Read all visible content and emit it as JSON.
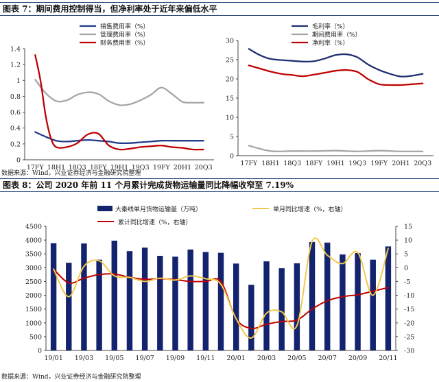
{
  "figure7": {
    "title": "图表 7：期间费用控制得当，但净利率处于近年来偏低水平",
    "source": "数据来源：Wind，兴业证券经济与金融研究院整理"
  },
  "figure8": {
    "title": "图表 8：公司 2020 年前 11 个月累计完成货物运输量同比降幅收窄至 7.19%",
    "source": "数据来源：Wind，兴业证券经济与金融研究院整理"
  },
  "chart_data": [
    {
      "id": "left",
      "type": "line",
      "x_tick_labels": [
        "17FY",
        "18H1",
        "18Q3",
        "18FY",
        "19H1",
        "19Q3",
        "19FY",
        "20H1",
        "20Q3"
      ],
      "ylim": [
        0,
        1.4
      ],
      "y_ticks": [
        0,
        0.2,
        0.4,
        0.6,
        0.8,
        1,
        1.2,
        1.4
      ],
      "legend_position": "top-center",
      "series": [
        {
          "name": "销售费用率（%）",
          "color": "#1f3a8a",
          "x": [
            0,
            0.5,
            1,
            1.5,
            2,
            2.5,
            3,
            3.5,
            4,
            4.5,
            5,
            5.5,
            6,
            6.5,
            7,
            7.5,
            8
          ],
          "values": [
            0.35,
            0.29,
            0.24,
            0.23,
            0.24,
            0.25,
            0.24,
            0.23,
            0.21,
            0.21,
            0.22,
            0.23,
            0.24,
            0.24,
            0.24,
            0.24,
            0.24
          ]
        },
        {
          "name": "管理费用率（%）",
          "color": "#a6a6a6",
          "x": [
            0,
            0.5,
            1,
            1.5,
            2,
            2.5,
            3,
            3.5,
            4,
            4.5,
            5,
            5.5,
            6,
            6.5,
            7,
            7.5,
            8
          ],
          "values": [
            1.01,
            0.84,
            0.74,
            0.75,
            0.82,
            0.85,
            0.83,
            0.74,
            0.69,
            0.7,
            0.75,
            0.82,
            0.91,
            0.83,
            0.73,
            0.72,
            0.72
          ]
        },
        {
          "name": "财务费用率（%）",
          "color": "#c00000",
          "x": [
            0,
            0.25,
            0.5,
            0.75,
            1,
            1.5,
            2,
            2.5,
            3,
            3.5,
            4,
            4.5,
            5,
            5.5,
            6,
            6.5,
            7,
            7.5,
            8
          ],
          "values": [
            1.32,
            1.0,
            0.55,
            0.27,
            0.16,
            0.16,
            0.21,
            0.32,
            0.33,
            0.18,
            0.13,
            0.14,
            0.16,
            0.17,
            0.18,
            0.16,
            0.15,
            0.13,
            0.13
          ]
        }
      ]
    },
    {
      "id": "right",
      "type": "line",
      "x_tick_labels": [
        "17FY",
        "18H1",
        "18Q3",
        "18FY",
        "19H1",
        "19Q3",
        "19FY",
        "20H1",
        "20Q3"
      ],
      "ylim": [
        0,
        30
      ],
      "y_ticks": [
        0,
        5,
        10,
        15,
        20,
        25,
        30
      ],
      "legend_position": "top-left",
      "series": [
        {
          "name": "毛利率（%）",
          "color": "#1f2f6f",
          "x": [
            0,
            0.5,
            1,
            1.5,
            2,
            2.5,
            3,
            3.5,
            4,
            4.5,
            5,
            5.5,
            6,
            6.5,
            7,
            7.5,
            8
          ],
          "values": [
            27.8,
            26.2,
            25.2,
            24.9,
            24.7,
            24.5,
            24.6,
            25.3,
            26.2,
            26.4,
            25.6,
            23.7,
            22.3,
            21.3,
            20.6,
            20.8,
            21.3
          ]
        },
        {
          "name": "期间费用率（%）",
          "color": "#a6a6a6",
          "x": [
            0,
            1,
            2,
            3,
            4,
            5,
            6,
            7,
            8
          ],
          "values": [
            2.6,
            1.2,
            1.2,
            1.2,
            1.3,
            1.1,
            1.3,
            1.1,
            1.1
          ]
        },
        {
          "name": "净利率（%）",
          "color": "#c00000",
          "x": [
            0,
            0.5,
            1,
            1.5,
            2,
            2.5,
            3,
            3.5,
            4,
            4.5,
            5,
            5.5,
            6,
            6.5,
            7,
            7.5,
            8
          ],
          "values": [
            23.5,
            22.7,
            21.9,
            21.3,
            21.0,
            20.7,
            21.1,
            21.6,
            22.1,
            22.3,
            21.8,
            19.9,
            18.6,
            18.4,
            18.4,
            18.6,
            18.8
          ]
        }
      ]
    },
    {
      "id": "bottom",
      "type": "bar",
      "x_tick_labels": [
        "19/01",
        "19/03",
        "19/05",
        "19/07",
        "19/09",
        "19/11",
        "20/01",
        "20/03",
        "20/05",
        "20/07",
        "20/09",
        "20/11"
      ],
      "y_left_ticks": [
        0,
        500,
        1000,
        1500,
        2000,
        2500,
        3000,
        3500,
        4000,
        4500
      ],
      "y_right_ticks": [
        -30,
        -25,
        -20,
        -15,
        -10,
        -5,
        0,
        5,
        10,
        15
      ],
      "ylim_left": [
        0,
        4500
      ],
      "ylim_right": [
        -30,
        15
      ],
      "legend_position": "top",
      "series": [
        {
          "name": "大秦线单月货物运输量（万吨）",
          "axis": "left",
          "kind": "bar",
          "color": "#14236e",
          "values": [
            3890,
            3180,
            3880,
            3290,
            3980,
            3600,
            3730,
            3430,
            3400,
            3660,
            3570,
            3540,
            3150,
            2380,
            3230,
            2980,
            3160,
            3930,
            3910,
            3480,
            3530,
            3290,
            3770
          ]
        },
        {
          "name": "单月同比增速（%，右轴）",
          "axis": "right",
          "kind": "line",
          "color": "#f2c94c",
          "values": [
            -0.5,
            -10.5,
            0.5,
            2.5,
            -3,
            -3.5,
            -5,
            -3.8,
            -4.5,
            -3,
            -4,
            -6,
            -18.5,
            -25.5,
            -16.5,
            -16,
            -21,
            9.5,
            4.5,
            1.5,
            5.5,
            -10,
            7
          ]
        },
        {
          "name": "累计同比增速（%，右轴）",
          "axis": "right",
          "kind": "line",
          "color": "#c00000",
          "values": [
            -0.5,
            -5.5,
            -3.8,
            -2.5,
            -2.3,
            -3.5,
            -4.2,
            -4,
            -4.3,
            -5,
            -5,
            -5,
            -18.5,
            -22,
            -20.5,
            -19.5,
            -19,
            -15,
            -12,
            -10.5,
            -9.8,
            -8.5,
            -7.2
          ]
        }
      ]
    }
  ]
}
